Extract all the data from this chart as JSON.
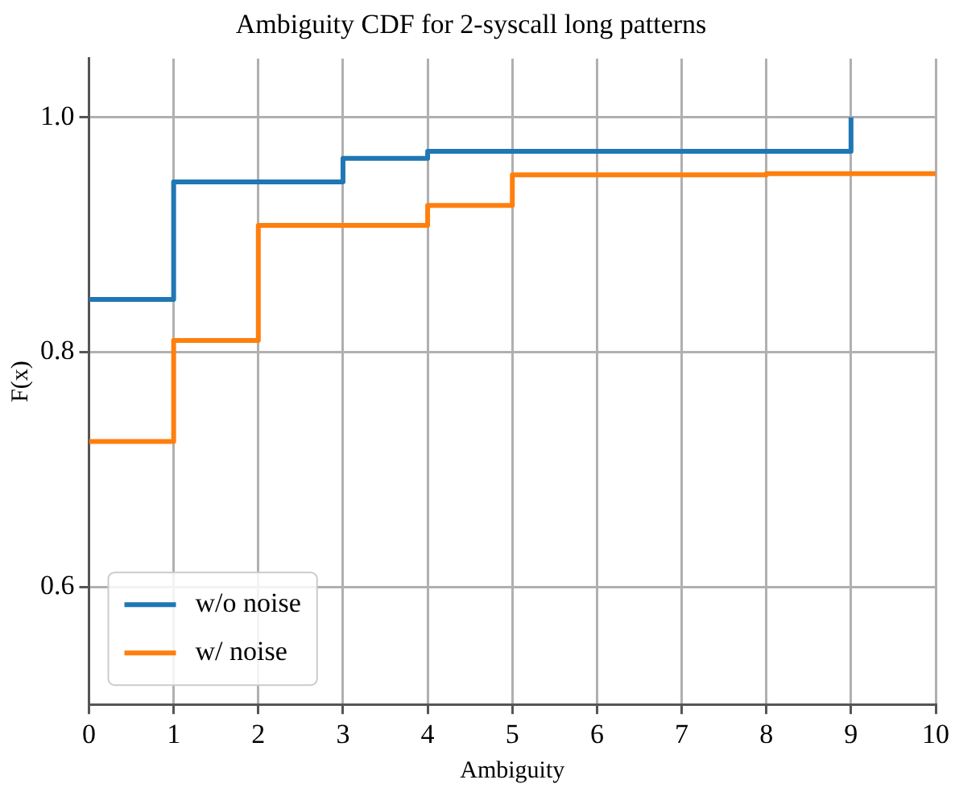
{
  "chart_data": {
    "type": "step",
    "title": "Ambiguity CDF for 2-syscall long patterns",
    "xlabel": "Ambiguity",
    "ylabel": "F(x)",
    "series": [
      {
        "name": "w/o noise",
        "color": "#1f77b4",
        "x": [
          0,
          1,
          3,
          4,
          9
        ],
        "values": [
          0.845,
          0.945,
          0.965,
          0.971,
          1.0
        ]
      },
      {
        "name": "w/ noise",
        "color": "#ff7f0e",
        "x": [
          0,
          1,
          2,
          4,
          5,
          8,
          10
        ],
        "values": [
          0.724,
          0.81,
          0.908,
          0.925,
          0.951,
          0.952,
          0.952
        ]
      }
    ],
    "xlim": [
      0,
      10
    ],
    "xticks": [
      0,
      1,
      2,
      3,
      4,
      5,
      6,
      7,
      8,
      9,
      10
    ],
    "ylim": [
      0.5,
      1.05
    ],
    "yticks": [
      {
        "value": 0.6,
        "label": "0.6"
      },
      {
        "value": 0.8,
        "label": "0.8"
      },
      {
        "value": 1,
        "label": "1.0"
      }
    ],
    "grid": true,
    "legend": "bottom left"
  }
}
